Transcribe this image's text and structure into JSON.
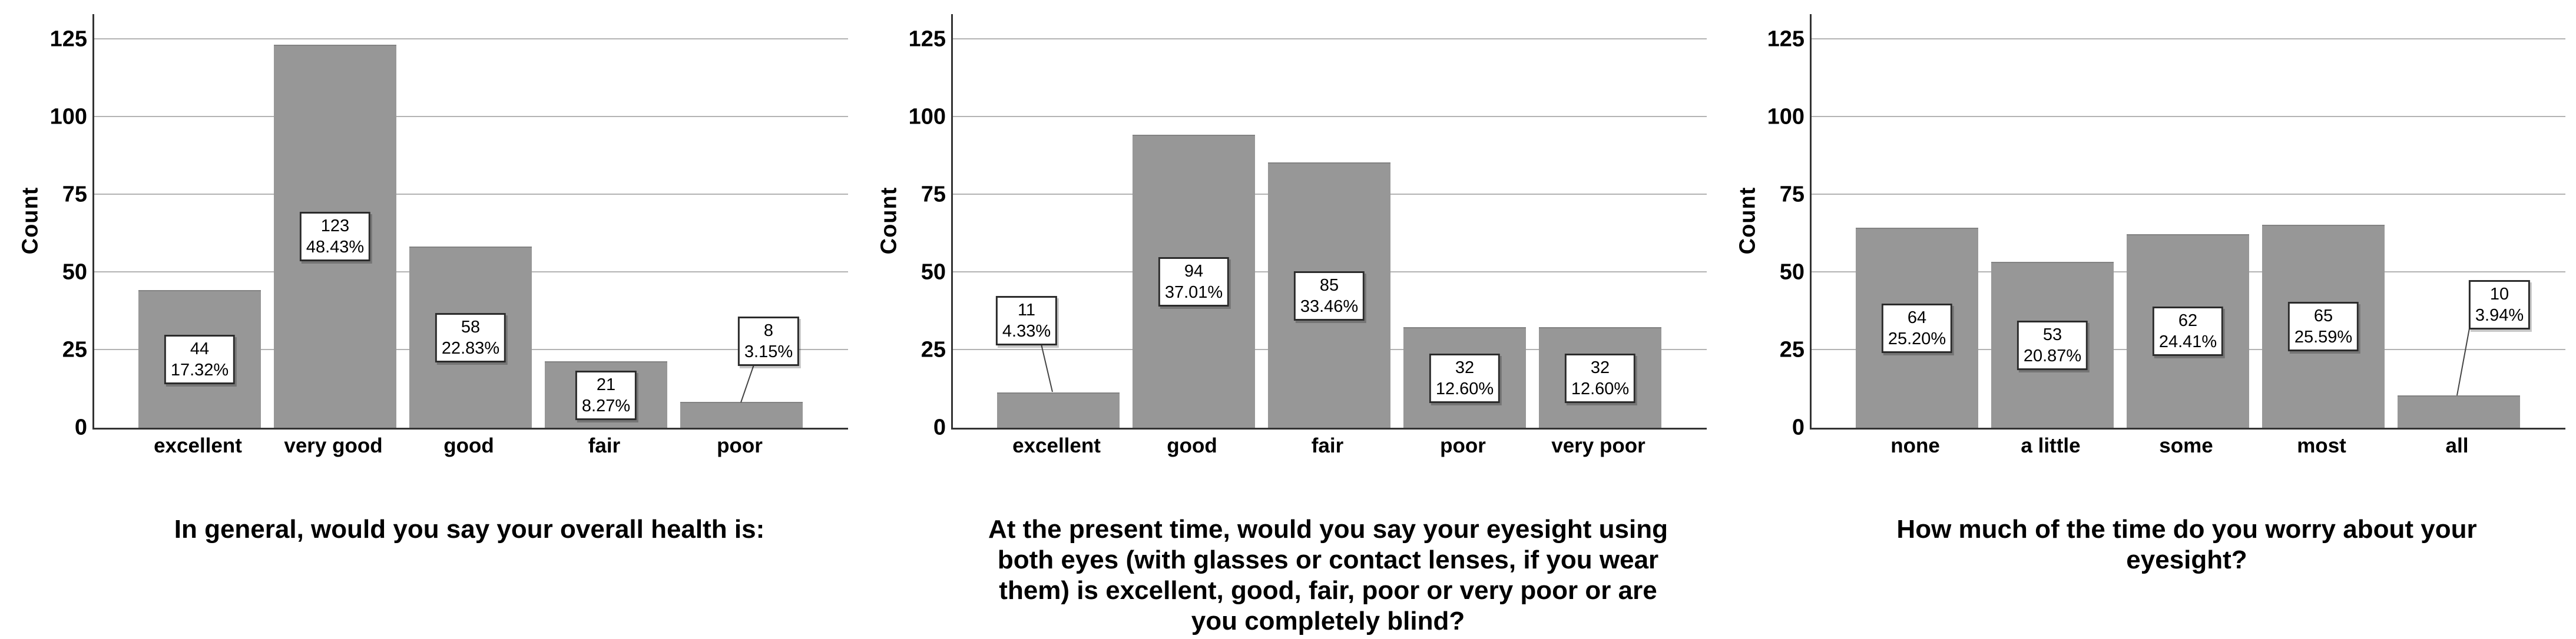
{
  "figure": {
    "background": "#ffffff",
    "bar_color": "#979797",
    "grid_color": "#b3b3b3",
    "axis_color": "#333333",
    "label_box": {
      "fill": "#ffffff",
      "border": "#2b2b2b",
      "text_color": "#000000"
    }
  },
  "chart_data": [
    {
      "type": "bar",
      "title": "In general, would you say your overall health is:",
      "title_lines": [
        "In general, would you say your overall health is:"
      ],
      "ylabel": "Count",
      "yticks": [
        0,
        25,
        50,
        75,
        100,
        125
      ],
      "ylim": [
        0,
        125
      ],
      "grid": true,
      "legend_position": "none",
      "bar_color": "#979797",
      "categories": [
        "excellent",
        "very good",
        "good",
        "fair",
        "poor"
      ],
      "values": [
        44,
        123,
        58,
        21,
        8
      ],
      "percents": [
        "17.32%",
        "48.43%",
        "22.83%",
        "8.27%",
        "3.15%"
      ]
    },
    {
      "type": "bar",
      "title": "At the present time, would you say your eyesight using both eyes (with glasses or contact lenses, if you wear them) is excellent, good, fair, poor or very poor or are you completely blind?",
      "title_lines": [
        "At the present time, would you say your eyesight using",
        "both eyes (with glasses or contact lenses, if you wear",
        "them) is excellent, good, fair, poor or very poor or are",
        "you completely blind?"
      ],
      "ylabel": "Count",
      "yticks": [
        0,
        25,
        50,
        75,
        100,
        125
      ],
      "ylim": [
        0,
        125
      ],
      "grid": true,
      "legend_position": "none",
      "bar_color": "#979797",
      "categories": [
        "excellent",
        "good",
        "fair",
        "poor",
        "very poor"
      ],
      "values": [
        11,
        94,
        85,
        32,
        32
      ],
      "percents": [
        "4.33%",
        "37.01%",
        "33.46%",
        "12.60%",
        "12.60%"
      ]
    },
    {
      "type": "bar",
      "title": "How much of the time do you worry about your eyesight?",
      "title_lines": [
        "How much of the time do you worry about your",
        "eyesight?"
      ],
      "ylabel": "Count",
      "yticks": [
        0,
        25,
        50,
        75,
        100,
        125
      ],
      "ylim": [
        0,
        125
      ],
      "grid": true,
      "legend_position": "none",
      "bar_color": "#979797",
      "categories": [
        "none",
        "a little",
        "some",
        "most",
        "all"
      ],
      "values": [
        64,
        53,
        62,
        65,
        10
      ],
      "percents": [
        "25.20%",
        "20.87%",
        "24.41%",
        "25.59%",
        "3.94%"
      ]
    }
  ]
}
